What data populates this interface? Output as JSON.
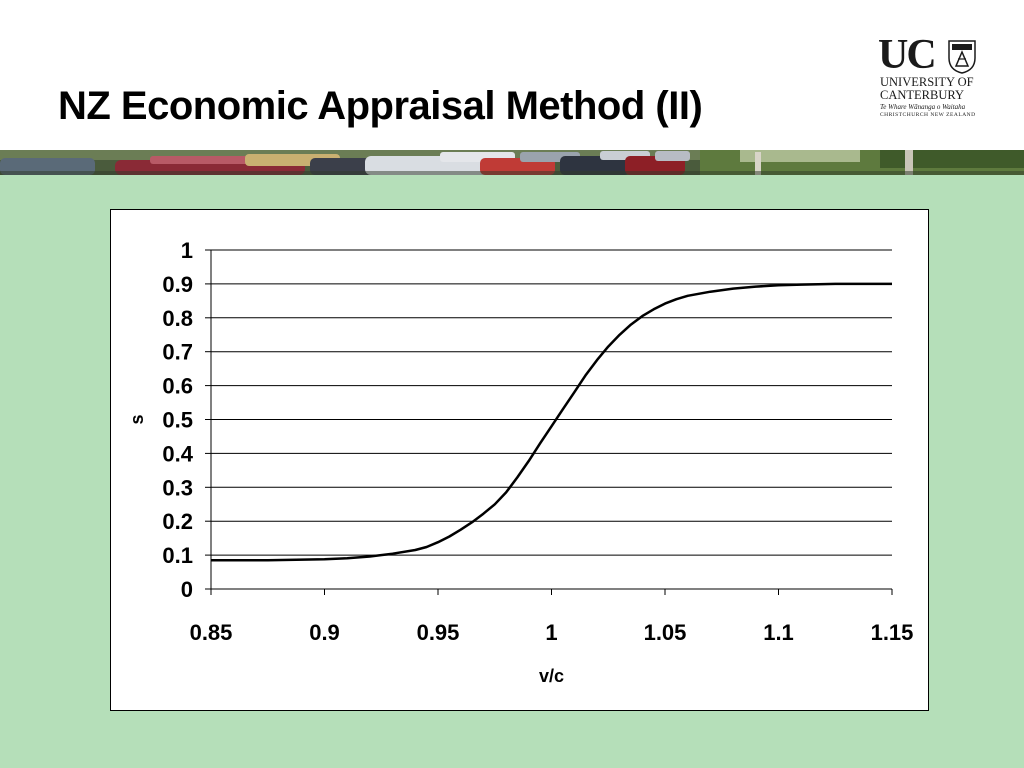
{
  "slide": {
    "title": "NZ Economic Appraisal Method (II)"
  },
  "logo": {
    "mark": "UC",
    "line1": "UNIVERSITY OF",
    "line2": "CANTERBURY",
    "line3": "Te Whare Wānanga o Waitaha",
    "line4": "CHRISTCHURCH NEW ZEALAND",
    "icon": "crest-icon"
  },
  "banner": {
    "icon": "traffic-photo-strip"
  },
  "colors": {
    "background": "#b5dfb9",
    "line": "#000000",
    "grid": "#000000"
  },
  "chart_data": {
    "type": "line",
    "xlabel": "v/c",
    "ylabel": "s",
    "xlim": [
      0.85,
      1.15
    ],
    "ylim": [
      0,
      1
    ],
    "xticks": [
      "0.85",
      "0.9",
      "0.95",
      "1",
      "1.05",
      "1.1",
      "1.15"
    ],
    "yticks": [
      "0",
      "0.1",
      "0.2",
      "0.3",
      "0.4",
      "0.5",
      "0.6",
      "0.7",
      "0.8",
      "0.9",
      "1"
    ],
    "grid": true,
    "legend": "none",
    "series": [
      {
        "x": [
          0.85,
          0.875,
          0.9,
          0.91,
          0.92,
          0.93,
          0.94,
          0.945,
          0.95,
          0.955,
          0.96,
          0.965,
          0.97,
          0.975,
          0.98,
          0.985,
          0.99,
          0.995,
          1.0,
          1.005,
          1.01,
          1.015,
          1.02,
          1.025,
          1.03,
          1.035,
          1.04,
          1.045,
          1.05,
          1.055,
          1.06,
          1.07,
          1.08,
          1.09,
          1.1,
          1.11,
          1.125,
          1.15
        ],
        "y": [
          0.085,
          0.085,
          0.088,
          0.091,
          0.096,
          0.104,
          0.115,
          0.124,
          0.138,
          0.155,
          0.175,
          0.197,
          0.222,
          0.25,
          0.285,
          0.33,
          0.378,
          0.43,
          0.48,
          0.53,
          0.58,
          0.63,
          0.675,
          0.715,
          0.75,
          0.78,
          0.805,
          0.825,
          0.842,
          0.855,
          0.865,
          0.877,
          0.886,
          0.892,
          0.896,
          0.898,
          0.9,
          0.9
        ]
      }
    ]
  }
}
